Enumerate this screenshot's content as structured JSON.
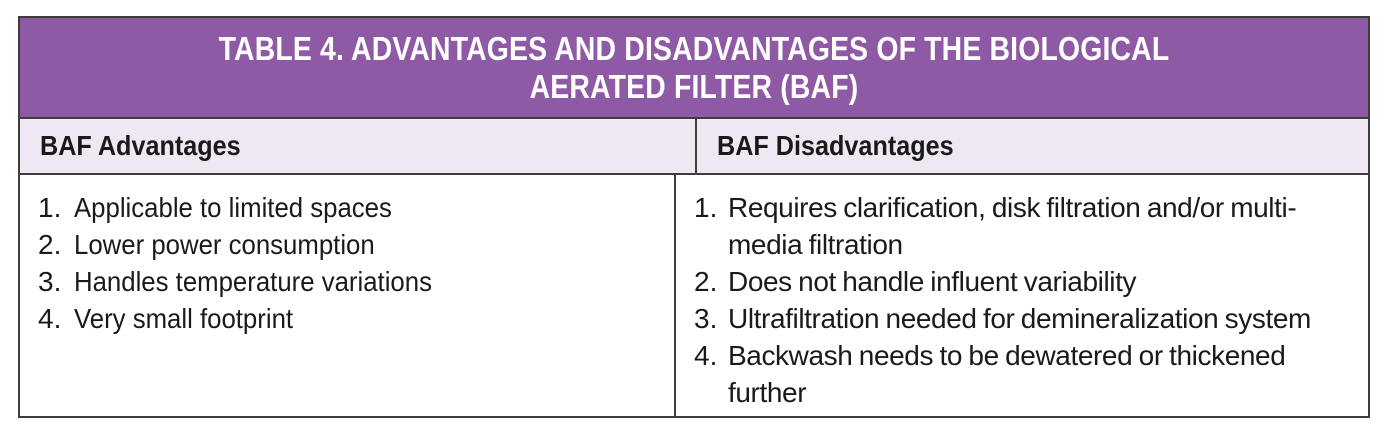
{
  "table": {
    "title": "TABLE 4.  ADVANTAGES AND DISADVANTAGES OF THE BIOLOGICAL AERATED FILTER (BAF)",
    "header_left": "BAF Advantages",
    "header_right": "BAF Disadvantages",
    "advantages": [
      {
        "num": "1.",
        "text": "Applicable to limited spaces"
      },
      {
        "num": "2.",
        "text": "Lower power consumption"
      },
      {
        "num": "3.",
        "text": "Handles temperature variations"
      },
      {
        "num": "4.",
        "text": "Very small footprint"
      }
    ],
    "disadvantages": [
      {
        "num": "1.",
        "text": "Requires clarification, disk filtration and/or multi-media filtration"
      },
      {
        "num": "2.",
        "text": "Does not handle influent variability"
      },
      {
        "num": "3.",
        "text": "Ultrafiltration needed for demineralization system"
      },
      {
        "num": "4.",
        "text": "Backwash needs to be dewatered or thickened further"
      }
    ],
    "colors": {
      "title_bg": "#8e5aa6",
      "header_bg": "#efe7f2",
      "border": "#3d3d3d"
    }
  }
}
